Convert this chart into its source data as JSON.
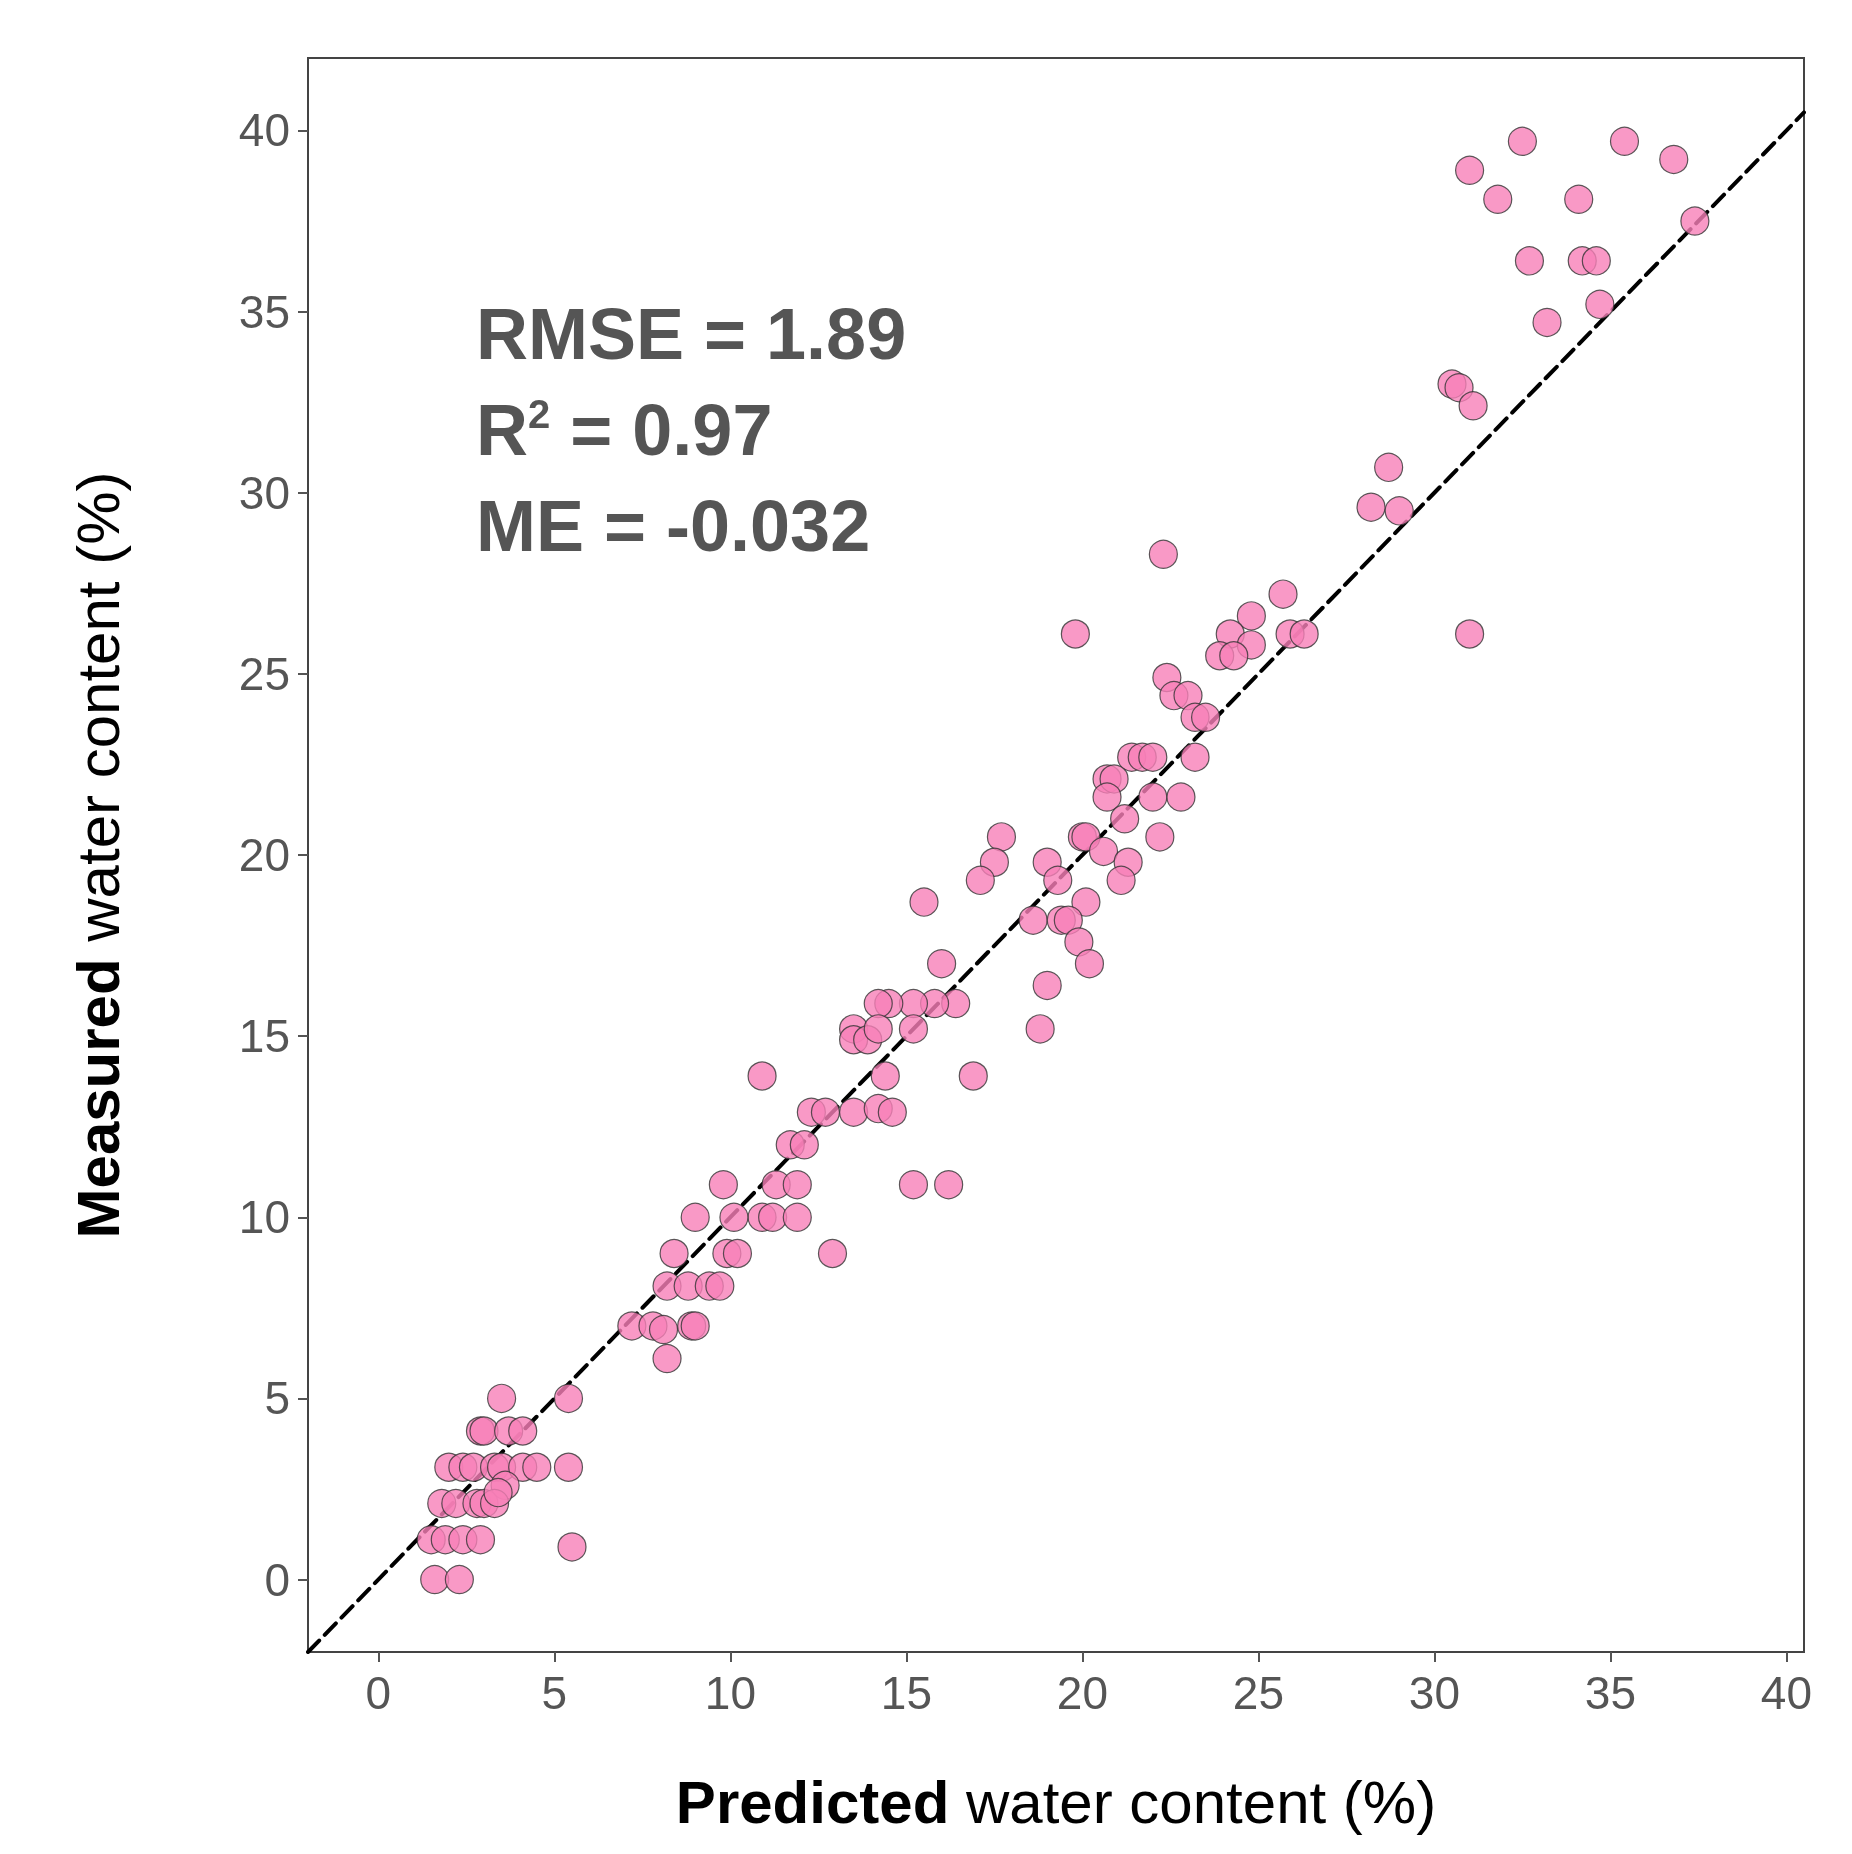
{
  "chart_data": {
    "type": "scatter",
    "xlabel": "Predicted water content (%)",
    "ylabel": "Measured water content (%)",
    "annotations": [
      "RMSE = 1.89",
      "R$^{2}$ = 0.97",
      "ME = -0.032"
    ],
    "xlim": [
      -2,
      40.5
    ],
    "ylim": [
      -2,
      42
    ],
    "xticks": [
      0,
      5,
      10,
      15,
      20,
      25,
      30,
      35,
      40
    ],
    "yticks": [
      0,
      5,
      10,
      15,
      20,
      25,
      30,
      35,
      40
    ],
    "grid": false,
    "marker": "circle",
    "series": [
      {
        "type": "scatter",
        "color": "#f77fb8",
        "x": [
          32.5,
          35.4,
          36.8,
          31.0,
          31.8,
          34.1,
          37.4,
          32.7,
          34.2,
          34.6,
          34.7,
          33.2,
          30.5,
          30.7,
          31.1,
          28.7,
          28.2,
          29.0,
          22.3,
          31.0,
          19.8,
          25.7,
          24.8,
          24.2,
          24.8,
          25.9,
          26.3,
          23.9,
          24.3,
          22.4,
          22.6,
          23.0,
          23.2,
          23.5,
          23.2,
          21.4,
          21.7,
          22.0,
          20.7,
          20.9,
          20.7,
          22.0,
          22.8,
          21.2,
          22.2,
          20.0,
          20.1,
          20.6,
          21.3,
          19.0,
          21.1,
          19.3,
          20.1,
          18.6,
          19.4,
          19.6,
          19.9,
          20.2,
          19.0,
          18.8,
          17.7,
          17.5,
          17.1,
          15.5,
          16.0,
          16.4,
          15.8,
          15.2,
          15.2,
          14.5,
          14.2,
          13.5,
          13.5,
          13.9,
          14.2,
          14.4,
          16.9,
          10.9,
          13.5,
          14.2,
          14.6,
          12.3,
          12.7,
          11.7,
          12.1,
          15.2,
          16.2,
          11.3,
          11.9,
          9.8,
          10.9,
          11.2,
          11.9,
          9.0,
          10.1,
          12.9,
          8.4,
          9.9,
          10.2,
          8.2,
          8.8,
          9.4,
          9.7,
          7.2,
          7.8,
          8.1,
          8.9,
          9.0,
          8.2,
          3.5,
          5.4,
          2.9,
          3.0,
          3.7,
          4.1,
          2.0,
          2.4,
          2.7,
          3.3,
          3.5,
          4.1,
          4.5,
          5.4,
          3.6,
          1.8,
          2.2,
          2.8,
          3.0,
          3.3,
          3.4,
          1.5,
          1.9,
          2.4,
          2.9,
          5.5,
          1.6,
          2.3
        ],
        "values": [
          39.7,
          39.7,
          39.2,
          38.9,
          38.1,
          38.1,
          37.5,
          36.4,
          36.4,
          36.4,
          35.2,
          34.7,
          33.0,
          32.9,
          32.4,
          30.7,
          29.6,
          29.5,
          28.3,
          26.1,
          26.1,
          27.2,
          26.6,
          26.1,
          25.8,
          26.1,
          26.1,
          25.5,
          25.5,
          24.9,
          24.4,
          24.4,
          23.8,
          23.8,
          22.7,
          22.7,
          22.7,
          22.7,
          22.1,
          22.1,
          21.6,
          21.6,
          21.6,
          21.0,
          20.5,
          20.5,
          20.5,
          20.1,
          19.8,
          19.8,
          19.3,
          19.3,
          18.7,
          18.2,
          18.2,
          18.2,
          17.6,
          17.0,
          16.4,
          15.2,
          20.5,
          19.8,
          19.3,
          18.7,
          17.0,
          15.9,
          15.9,
          15.9,
          15.2,
          15.9,
          15.9,
          15.2,
          14.9,
          14.9,
          15.2,
          13.9,
          13.9,
          13.9,
          12.9,
          13.0,
          12.9,
          12.9,
          12.9,
          12.0,
          12.0,
          10.9,
          10.9,
          10.9,
          10.9,
          10.9,
          10.0,
          10.0,
          10.0,
          10.0,
          10.0,
          9.0,
          9.0,
          9.0,
          9.0,
          8.1,
          8.1,
          8.1,
          8.1,
          7.0,
          7.0,
          6.9,
          7.0,
          7.0,
          6.1,
          5.0,
          5.0,
          4.1,
          4.1,
          4.1,
          4.1,
          3.1,
          3.1,
          3.1,
          3.1,
          3.1,
          3.1,
          3.1,
          3.1,
          2.6,
          2.1,
          2.1,
          2.1,
          2.1,
          2.1,
          2.4,
          1.1,
          1.1,
          1.1,
          1.1,
          0.9,
          0.0,
          0.0
        ]
      },
      {
        "type": "line",
        "color": "#000000",
        "line_style": "dashed",
        "marker": "none",
        "x": [
          -2,
          40.5
        ],
        "values": [
          -2,
          40.5
        ]
      }
    ]
  }
}
